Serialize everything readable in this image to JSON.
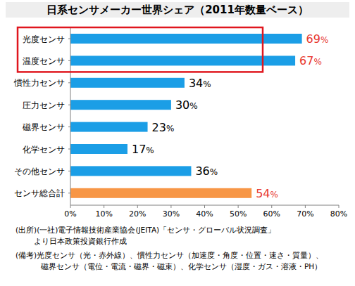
{
  "chart_data": {
    "type": "bar",
    "orientation": "horizontal",
    "title": "日系センサメーカー世界シェア（2011年数量ベース）",
    "categories": [
      "光度センサ",
      "温度センサ",
      "慣性力センサ",
      "圧力センサ",
      "磁界センサ",
      "化学センサ",
      "その他センサ",
      "センサ総合計"
    ],
    "values": [
      69,
      67,
      34,
      30,
      23,
      17,
      36,
      54
    ],
    "value_labels": [
      "69%",
      "67%",
      "34%",
      "30%",
      "23%",
      "17%",
      "36%",
      "54%"
    ],
    "colors": [
      "#1b9ee6",
      "#1b9ee6",
      "#1b9ee6",
      "#1b9ee6",
      "#1b9ee6",
      "#1b9ee6",
      "#1b9ee6",
      "#f79646"
    ],
    "data_labels": true,
    "grid": false,
    "xlim": [
      0,
      80
    ],
    "xticks": [
      {
        "value": 0,
        "label": "0%"
      },
      {
        "value": 10,
        "label": "10%"
      },
      {
        "value": 20,
        "label": "20%"
      },
      {
        "value": 30,
        "label": "30%"
      },
      {
        "value": 40,
        "label": "40%"
      },
      {
        "value": 50,
        "label": "50%"
      },
      {
        "value": 60,
        "label": "60%"
      },
      {
        "value": 70,
        "label": "70%"
      },
      {
        "value": 80,
        "label": "80%"
      }
    ],
    "annotations": [
      "(出所)(一社)電子情報技術産業協会(JEITA)「センサ・グローバル状況調査」",
      "より日本政策投資銀行作成",
      "(備考)光度センサ（光・赤外線）、慣性力センサ（加速度・角度・位置・速さ・質量）、",
      "磁界センサ（電位・電流・磁界・磁束）、化学センサ（湿度・ガス・溶液・PH）"
    ]
  }
}
